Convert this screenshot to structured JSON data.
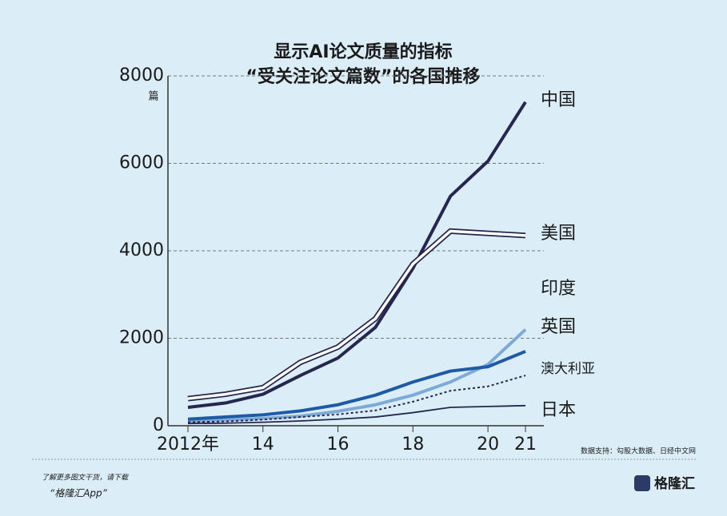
{
  "chart_data": {
    "type": "line",
    "title": "显示AI论文质量的指标",
    "subtitle": "“受关注论文篇数”的各国推移",
    "y_unit": "篇",
    "x": [
      2012,
      2013,
      2014,
      2015,
      2016,
      2017,
      2018,
      2019,
      2020,
      2021
    ],
    "xlim": [
      2012,
      2021
    ],
    "xticks": [
      {
        "value": 2012,
        "label": "2012年"
      },
      {
        "value": 2014,
        "label": "14"
      },
      {
        "value": 2016,
        "label": "16"
      },
      {
        "value": 2018,
        "label": "18"
      },
      {
        "value": 2020,
        "label": "20"
      },
      {
        "value": 2021,
        "label": "21"
      }
    ],
    "ylim": [
      0,
      8000
    ],
    "yticks": [
      0,
      2000,
      4000,
      6000,
      8000
    ],
    "grid": true,
    "series": [
      {
        "name": "中国",
        "color": "#26264e",
        "style": "solid",
        "values": [
          420,
          520,
          720,
          1150,
          1550,
          2250,
          3600,
          5250,
          6050,
          7400
        ]
      },
      {
        "name": "美国",
        "color": "#26264e",
        "style": "double",
        "values": [
          620,
          720,
          870,
          1450,
          1800,
          2450,
          3700,
          4450,
          4400,
          4350
        ]
      },
      {
        "name": "印度",
        "color": "#7eaad8",
        "style": "solid",
        "values": [
          100,
          130,
          170,
          220,
          330,
          480,
          700,
          1000,
          1400,
          2200
        ]
      },
      {
        "name": "英国",
        "color": "#1f5aa6",
        "style": "solid",
        "values": [
          150,
          200,
          250,
          340,
          480,
          700,
          1000,
          1250,
          1350,
          1700
        ]
      },
      {
        "name": "澳大利亚",
        "color": "#26264e",
        "style": "dotted",
        "values": [
          80,
          100,
          140,
          200,
          260,
          350,
          550,
          800,
          900,
          1150
        ]
      },
      {
        "name": "日本",
        "color": "#26264e",
        "style": "thin",
        "values": [
          50,
          60,
          80,
          110,
          150,
          200,
          300,
          420,
          440,
          460
        ]
      }
    ]
  },
  "source": "数据支持：勾股大数据、日经中文网",
  "footer": {
    "note": "了解更多图文干货，请下载",
    "app": "“格隆汇App”",
    "logo": "格隆汇"
  }
}
